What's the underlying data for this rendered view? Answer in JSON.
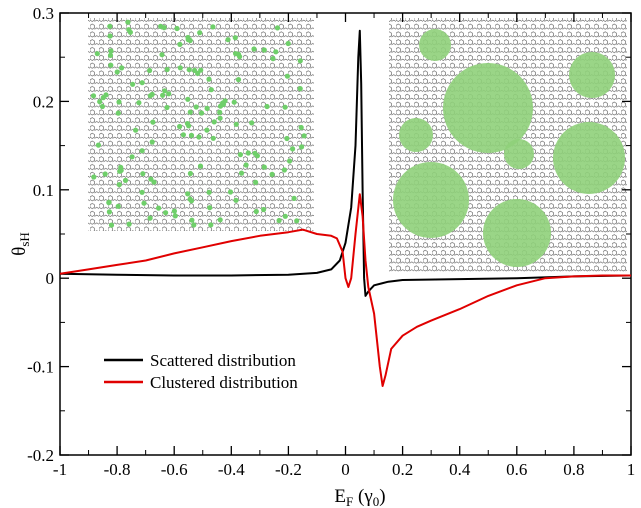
{
  "chart_data": {
    "type": "line",
    "xlabel": {
      "main": "E",
      "sub": "F",
      "tail": " (γ",
      "tail_sub": "0",
      "close": ")"
    },
    "ylabel": {
      "main": "θ",
      "sub": "sH"
    },
    "xlim": [
      -1,
      1
    ],
    "ylim": [
      -0.2,
      0.3
    ],
    "x_ticks": [
      -1,
      -0.8,
      -0.6,
      -0.4,
      -0.2,
      0,
      0.2,
      0.4,
      0.6,
      0.8,
      1
    ],
    "x_tick_labels": [
      "-1",
      "-0.8",
      "-0.6",
      "-0.4",
      "-0.2",
      "0",
      "0.2",
      "0.4",
      "0.6",
      "0.8",
      "1"
    ],
    "y_ticks": [
      -0.2,
      -0.1,
      0,
      0.1,
      0.2,
      0.3
    ],
    "y_tick_labels": [
      "-0.2",
      "-0.1",
      "0",
      "0.1",
      "0.2",
      "0.3"
    ],
    "grid": false,
    "legend_position": "bottom-left",
    "series": [
      {
        "name": "Scattered distribution",
        "color": "#000000",
        "points": [
          [
            -1,
            0.005
          ],
          [
            -0.8,
            0.004
          ],
          [
            -0.6,
            0.003
          ],
          [
            -0.4,
            0.003
          ],
          [
            -0.2,
            0.004
          ],
          [
            -0.1,
            0.006
          ],
          [
            -0.05,
            0.01
          ],
          [
            -0.02,
            0.02
          ],
          [
            0,
            0.04
          ],
          [
            0.02,
            0.08
          ],
          [
            0.035,
            0.15
          ],
          [
            0.045,
            0.25
          ],
          [
            0.05,
            0.28
          ],
          [
            0.055,
            0.22
          ],
          [
            0.06,
            0.1
          ],
          [
            0.065,
            0.0
          ],
          [
            0.07,
            -0.02
          ],
          [
            0.08,
            -0.015
          ],
          [
            0.1,
            -0.008
          ],
          [
            0.15,
            -0.004
          ],
          [
            0.2,
            -0.002
          ],
          [
            0.4,
            -0.001
          ],
          [
            0.6,
            0.0
          ],
          [
            0.8,
            0.002
          ],
          [
            1,
            0.003
          ]
        ]
      },
      {
        "name": "Clustered distribution",
        "color": "#e00000",
        "points": [
          [
            -1,
            0.005
          ],
          [
            -0.9,
            0.01
          ],
          [
            -0.8,
            0.015
          ],
          [
            -0.7,
            0.02
          ],
          [
            -0.6,
            0.028
          ],
          [
            -0.5,
            0.035
          ],
          [
            -0.4,
            0.042
          ],
          [
            -0.3,
            0.048
          ],
          [
            -0.2,
            0.052
          ],
          [
            -0.15,
            0.055
          ],
          [
            -0.1,
            0.05
          ],
          [
            -0.05,
            0.048
          ],
          [
            -0.03,
            0.045
          ],
          [
            -0.01,
            0.03
          ],
          [
            0.0,
            0.0
          ],
          [
            0.01,
            -0.01
          ],
          [
            0.02,
            0.0
          ],
          [
            0.035,
            0.05
          ],
          [
            0.05,
            0.095
          ],
          [
            0.06,
            0.07
          ],
          [
            0.07,
            0.02
          ],
          [
            0.08,
            -0.01
          ],
          [
            0.1,
            -0.04
          ],
          [
            0.12,
            -0.1
          ],
          [
            0.13,
            -0.122
          ],
          [
            0.14,
            -0.11
          ],
          [
            0.16,
            -0.08
          ],
          [
            0.2,
            -0.065
          ],
          [
            0.25,
            -0.055
          ],
          [
            0.3,
            -0.048
          ],
          [
            0.4,
            -0.035
          ],
          [
            0.5,
            -0.02
          ],
          [
            0.6,
            -0.008
          ],
          [
            0.7,
            0.0
          ],
          [
            0.8,
            0.002
          ],
          [
            0.9,
            0.003
          ],
          [
            1,
            0.003
          ]
        ]
      }
    ],
    "insets": [
      {
        "caption": "",
        "pattern": "scattered",
        "dot_color": "#6fcf6a"
      },
      {
        "caption": "",
        "pattern": "clustered",
        "dot_color": "#8fd07a"
      }
    ]
  }
}
